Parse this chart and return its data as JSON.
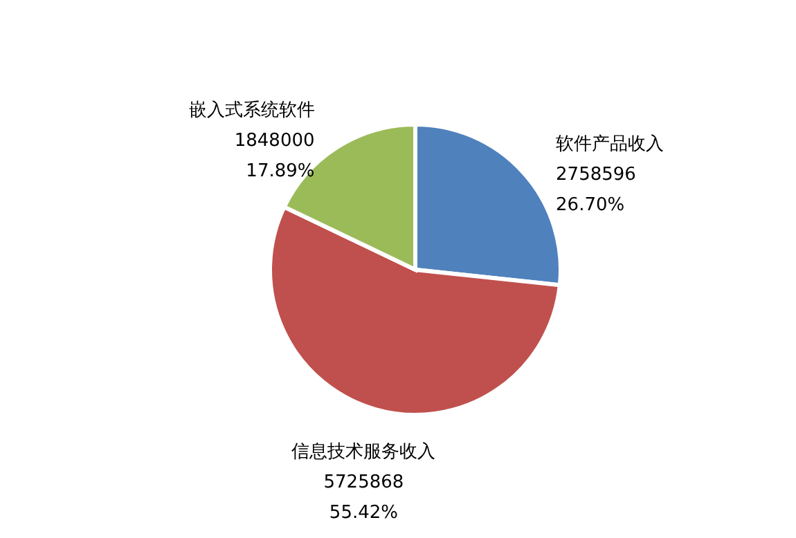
{
  "chart_data": {
    "type": "pie",
    "categories": [
      "软件产品收入",
      "信息技术服务收入",
      "嵌入式系统软件"
    ],
    "values": [
      26.7,
      55.42,
      17.89
    ],
    "colors": [
      "#4f81bd",
      "#c0504d",
      "#9bbb59"
    ],
    "value_labels": [
      "2758596\n26.70%",
      "5725868\n55.42%",
      "1848000\n17.89%"
    ],
    "legend": false
  }
}
